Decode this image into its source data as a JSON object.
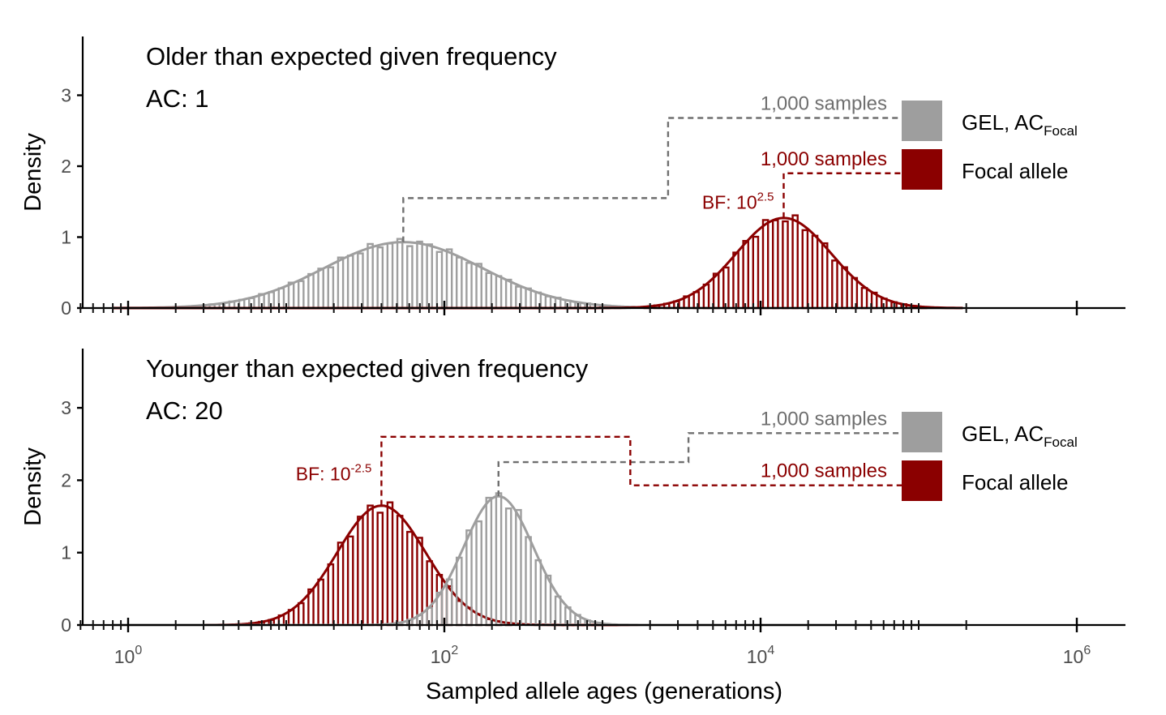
{
  "chart_data": {
    "type": "histogram",
    "x_scale": "log10",
    "xlabel": "Sampled allele ages (generations)",
    "ylabel": "Density",
    "xlim": [
      0.5,
      250000
    ],
    "ylim": [
      0,
      3.8
    ],
    "x_ticks": [
      {
        "value": 1,
        "base": "10",
        "exp": "0"
      },
      {
        "value": 100,
        "base": "10",
        "exp": "2"
      },
      {
        "value": 10000,
        "base": "10",
        "exp": "4"
      },
      {
        "value": 1000000,
        "base": "10",
        "exp": "6"
      }
    ],
    "y_ticks": [
      0,
      1,
      2,
      3
    ],
    "grid": false,
    "colors": {
      "gel": "#9e9e9e",
      "focal": "#8b0000",
      "gel_ann": "#6f6f6f",
      "focal_ann": "#8b0000"
    },
    "legend": {
      "placement": "right",
      "entries": [
        {
          "key": "gel",
          "label": "GEL, AC",
          "sub": "Focal"
        },
        {
          "key": "focal",
          "label": "Focal allele",
          "sub": ""
        }
      ]
    },
    "panels": [
      {
        "title": "Older than expected given frequency",
        "subtitle": "AC: 1",
        "series": [
          {
            "key": "gel",
            "mode_x": 55,
            "sigma_log10": 0.5,
            "peak_density": 0.93
          },
          {
            "key": "focal",
            "mode_x": 14000,
            "sigma_log10": 0.3,
            "peak_density": 1.27
          }
        ],
        "annotations": [
          {
            "key": "gel",
            "text": "1,000 samples",
            "y": 2.68,
            "x_from": 55,
            "x_step": 2600,
            "y_low": 1.55
          },
          {
            "key": "focal",
            "text": "1,000 samples",
            "y": 1.9,
            "x_from": 14000,
            "x_step": 14000,
            "y_low": 1.9
          },
          {
            "key": "focal",
            "bf_base": "BF: 10",
            "bf_exp": "2.5",
            "x": 14000,
            "y": 1.4
          }
        ]
      },
      {
        "title": "Younger than expected given frequency",
        "subtitle": "AC: 20",
        "series": [
          {
            "key": "focal",
            "mode_x": 40,
            "sigma_log10": 0.28,
            "peak_density": 1.65
          },
          {
            "key": "gel",
            "mode_x": 220,
            "sigma_log10": 0.22,
            "peak_density": 1.78
          }
        ],
        "annotations": [
          {
            "key": "gel",
            "text": "1,000 samples",
            "y": 2.65,
            "x_from": 220,
            "x_step": 3500,
            "y_low": 2.25
          },
          {
            "key": "focal",
            "text": "1,000 samples",
            "y": 1.93,
            "x_from": 40,
            "x_step": 1500,
            "y_low": 2.6
          },
          {
            "key": "focal",
            "bf_base": "BF: 10",
            "bf_exp": "-2.5",
            "x": 40,
            "y": 2.0
          }
        ]
      }
    ]
  }
}
